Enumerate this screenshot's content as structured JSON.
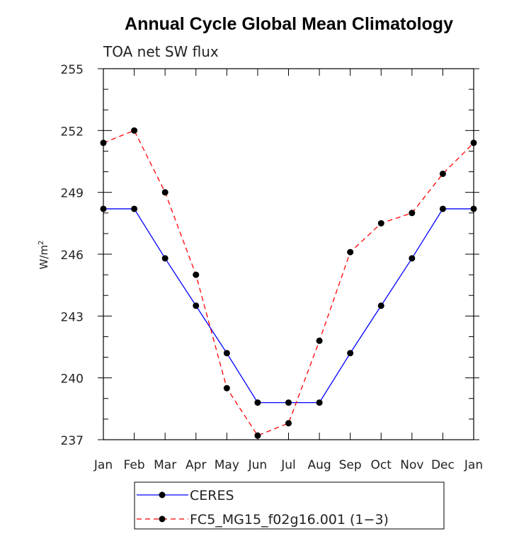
{
  "chart_data": {
    "type": "line",
    "title": "Annual Cycle Global Mean Climatology",
    "subtitle": "TOA net SW flux",
    "ylabel": "W/m",
    "ylabel_sup": "2",
    "categories": [
      "Jan",
      "Feb",
      "Mar",
      "Apr",
      "May",
      "Jun",
      "Jul",
      "Aug",
      "Sep",
      "Oct",
      "Nov",
      "Dec",
      "Jan"
    ],
    "ylim": [
      237,
      255
    ],
    "yticks": [
      "255",
      "252",
      "249",
      "246",
      "243",
      "240",
      "237"
    ],
    "series": [
      {
        "name": "CERES",
        "color": "#0000ff",
        "dash": "solid",
        "values": [
          248.2,
          248.2,
          245.8,
          243.5,
          241.2,
          238.8,
          238.8,
          238.8,
          241.2,
          243.5,
          245.8,
          248.2,
          248.2
        ]
      },
      {
        "name": "FC5_MG15_f02g16.001 (1−3)",
        "color": "#ff0000",
        "dash": "dashed",
        "values": [
          251.4,
          252.0,
          249.0,
          245.0,
          239.5,
          237.2,
          237.8,
          241.8,
          246.1,
          247.5,
          248.0,
          249.9,
          251.4
        ]
      }
    ],
    "legend_position": "bottom"
  }
}
